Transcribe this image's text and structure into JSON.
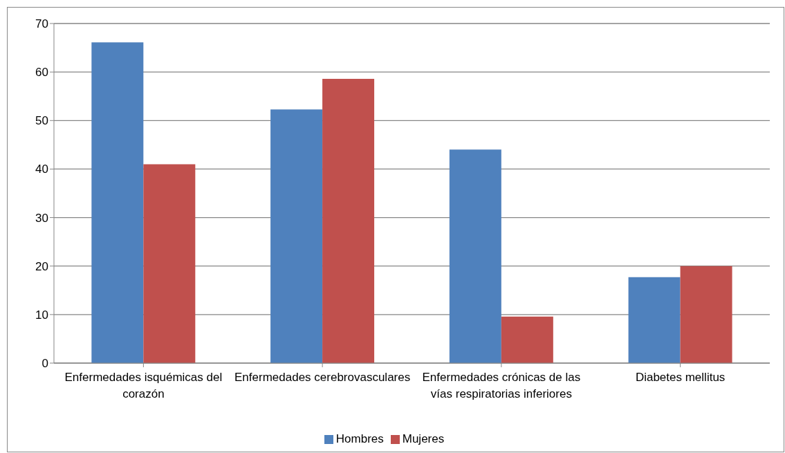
{
  "chart_data": {
    "type": "bar",
    "categories": [
      "Enfermedades isquémicas del corazón",
      "Enfermedades cerebrovasculares",
      "Enfermedades crónicas de las vías respiratorias inferiores",
      "Diabetes mellitus"
    ],
    "series": [
      {
        "name": "Hombres",
        "color": "#4f81bd",
        "values": [
          66.1,
          52.3,
          44.0,
          17.7
        ]
      },
      {
        "name": "Mujeres",
        "color": "#c0504d",
        "values": [
          41.0,
          58.6,
          9.6,
          20.0
        ]
      }
    ],
    "ylim": [
      0,
      70
    ],
    "yticks": [
      0,
      10,
      20,
      30,
      40,
      50,
      60,
      70
    ],
    "grid": "y",
    "legend": "bottom"
  }
}
